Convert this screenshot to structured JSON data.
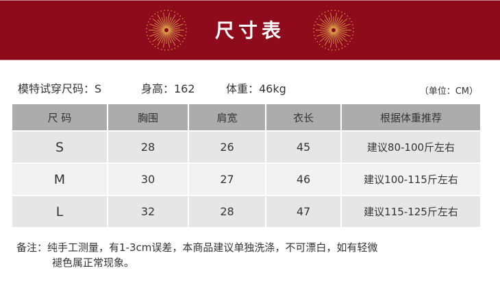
{
  "header": {
    "title": "尺寸表",
    "background_color": "#8d0b1b",
    "firework_color": "#d89a4a"
  },
  "model_info": {
    "size": "模特试穿尺码：S",
    "height": "身高：162",
    "weight": "体重：46kg",
    "unit": "（单位：CM）"
  },
  "table": {
    "columns": [
      "尺 码",
      "胸围",
      "肩宽",
      "衣长",
      "根据体重推荐"
    ],
    "rows": [
      [
        "S",
        "28",
        "26",
        "45",
        "建议80-100斤左右"
      ],
      [
        "M",
        "30",
        "27",
        "46",
        "建议100-115斤左右"
      ],
      [
        "L",
        "32",
        "28",
        "47",
        "建议115-125斤左右"
      ]
    ]
  },
  "note": {
    "line1": "备注：纯手工测量，有1-3cm误差，本商品建议单独洗涤，不可漂白，如有轻微",
    "line2": "褪色属正常现象。"
  }
}
